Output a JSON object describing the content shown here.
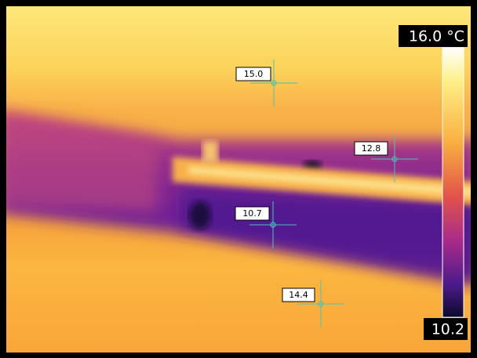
{
  "scale": {
    "max": "16.0 °C",
    "min": "10.2"
  },
  "spots": [
    {
      "label": "15.0"
    },
    {
      "label": "12.8"
    },
    {
      "label": "10.7"
    },
    {
      "label": "14.4"
    }
  ]
}
